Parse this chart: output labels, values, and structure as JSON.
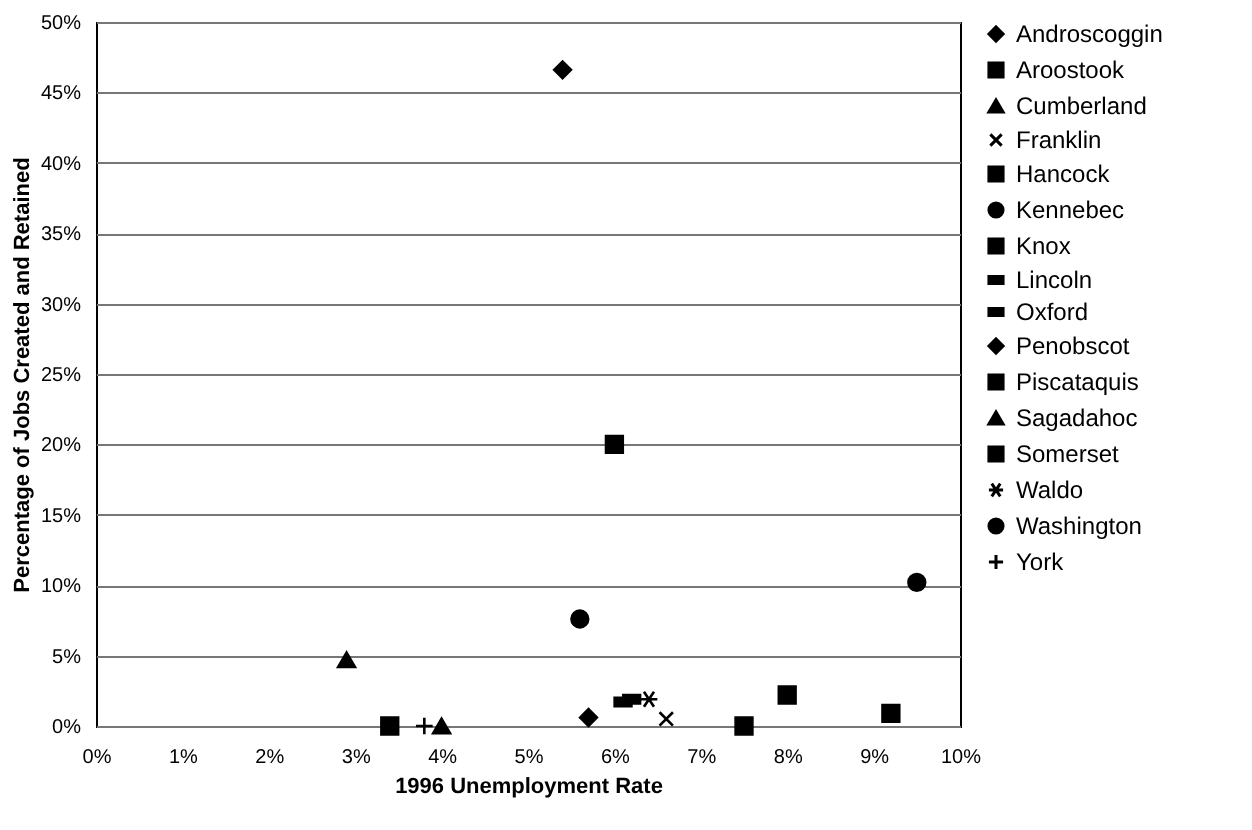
{
  "chart_data": {
    "type": "scatter",
    "xlabel": "1996 Unemployment Rate",
    "ylabel": "Percentage of Jobs Created and Retained",
    "xlim": [
      0,
      10
    ],
    "ylim": [
      0,
      50
    ],
    "xticks": [
      {
        "value": 0,
        "label": "0%"
      },
      {
        "value": 1,
        "label": "1%"
      },
      {
        "value": 2,
        "label": "2%"
      },
      {
        "value": 3,
        "label": "3%"
      },
      {
        "value": 4,
        "label": "4%"
      },
      {
        "value": 5,
        "label": "5%"
      },
      {
        "value": 6,
        "label": "6%"
      },
      {
        "value": 7,
        "label": "7%"
      },
      {
        "value": 8,
        "label": "8%"
      },
      {
        "value": 9,
        "label": "9%"
      },
      {
        "value": 10,
        "label": "10%"
      }
    ],
    "yticks": [
      {
        "value": 0,
        "label": "0%"
      },
      {
        "value": 5,
        "label": "5%"
      },
      {
        "value": 10,
        "label": "10%"
      },
      {
        "value": 15,
        "label": "15%"
      },
      {
        "value": 20,
        "label": "20%"
      },
      {
        "value": 25,
        "label": "25%"
      },
      {
        "value": 30,
        "label": "30%"
      },
      {
        "value": 35,
        "label": "35%"
      },
      {
        "value": 40,
        "label": "40%"
      },
      {
        "value": 45,
        "label": "45%"
      },
      {
        "value": 50,
        "label": "50%"
      }
    ],
    "grid": "y",
    "legend": "right",
    "series": [
      {
        "name": "Androscoggin",
        "color": "#000000",
        "marker": "diamond",
        "x": [
          5.7
        ],
        "values": [
          0.6
        ]
      },
      {
        "name": "Aroostook",
        "color": "#000000",
        "marker": "square",
        "x": [
          9.2
        ],
        "values": [
          0.9
        ]
      },
      {
        "name": "Cumberland",
        "color": "#000000",
        "marker": "triangle",
        "x": [
          2.9
        ],
        "values": [
          4.7
        ]
      },
      {
        "name": "Franklin",
        "color": "#000000",
        "marker": "x",
        "x": [
          6.6
        ],
        "values": [
          0.5
        ]
      },
      {
        "name": "Hancock",
        "color": "#000000",
        "marker": "square",
        "x": [
          6.0
        ],
        "values": [
          20
        ]
      },
      {
        "name": "Kennebec",
        "color": "#000000",
        "marker": "circle",
        "x": [
          5.6
        ],
        "values": [
          7.6
        ]
      },
      {
        "name": "Knox",
        "color": "#000000",
        "marker": "square",
        "x": [
          3.4
        ],
        "values": [
          0
        ]
      },
      {
        "name": "Lincoln",
        "color": "#000000",
        "x": [
          6.1
        ],
        "values": [
          1.7
        ]
      },
      {
        "name": "Oxford",
        "color": "#000000",
        "x": [
          6.2
        ],
        "values": [
          1.9
        ]
      },
      {
        "name": "Penobscot",
        "color": "#000000",
        "marker": "diamond",
        "x": [
          5.4
        ],
        "values": [
          46.6
        ]
      },
      {
        "name": "Piscataquis",
        "color": "#000000",
        "marker": "square",
        "x": [
          7.5
        ],
        "values": [
          0
        ]
      },
      {
        "name": "Sagadahoc",
        "color": "#000000",
        "marker": "triangle",
        "x": [
          4.0
        ],
        "values": [
          0
        ]
      },
      {
        "name": "Somerset",
        "color": "#000000",
        "marker": "square",
        "x": [
          8.0
        ],
        "values": [
          2.2
        ]
      },
      {
        "name": "Waldo",
        "color": "#000000",
        "marker": "cross",
        "x": [
          6.4
        ],
        "values": [
          1.9
        ]
      },
      {
        "name": "Washington",
        "color": "#000000",
        "marker": "circle",
        "x": [
          9.5
        ],
        "values": [
          10.2
        ]
      },
      {
        "name": "York",
        "color": "#000000",
        "marker": "plus",
        "x": [
          3.8
        ],
        "values": [
          0
        ]
      }
    ]
  }
}
